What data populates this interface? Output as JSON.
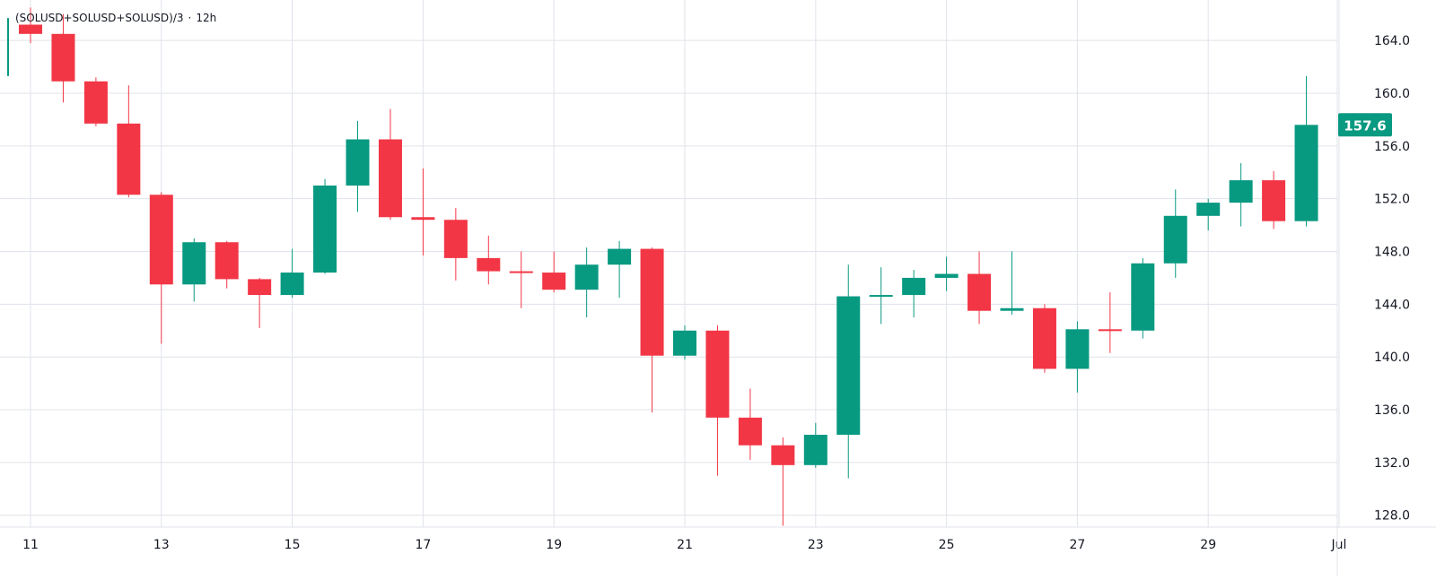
{
  "legend": {
    "symbol": "(SOLUSD+SOLUSD+SOLUSD)/3",
    "separator": "·",
    "interval": "12h"
  },
  "colors": {
    "up": "#089981",
    "down": "#F23645",
    "grid": "#E0E3EB",
    "axis_text": "#131722",
    "price_tag_bg": "#089981",
    "price_tag_text": "#FFFFFF"
  },
  "chart_data": {
    "type": "candlestick",
    "title": "(SOLUSD+SOLUSD+SOLUSD)/3 · 12h",
    "x_tick_labels": [
      "11",
      "13",
      "15",
      "17",
      "19",
      "21",
      "23",
      "25",
      "27",
      "29",
      "Jul"
    ],
    "y_tick_labels": [
      "128.0",
      "132.0",
      "136.0",
      "140.0",
      "144.0",
      "148.0",
      "152.0",
      "156.0",
      "160.0",
      "164.0"
    ],
    "ylim": [
      127.2,
      166.0
    ],
    "grid": true,
    "last_price": "157.6",
    "bar_times": [
      "Jun 11 00:00",
      "Jun 11 12:00",
      "Jun 12 00:00",
      "Jun 12 12:00",
      "Jun 13 00:00",
      "Jun 13 12:00",
      "Jun 14 00:00",
      "Jun 14 12:00",
      "Jun 15 00:00",
      "Jun 15 12:00",
      "Jun 16 00:00",
      "Jun 16 12:00",
      "Jun 17 00:00",
      "Jun 17 12:00",
      "Jun 18 00:00",
      "Jun 18 12:00",
      "Jun 19 00:00",
      "Jun 19 12:00",
      "Jun 20 00:00",
      "Jun 20 12:00",
      "Jun 21 00:00",
      "Jun 21 12:00",
      "Jun 22 00:00",
      "Jun 22 12:00",
      "Jun 23 00:00",
      "Jun 23 12:00",
      "Jun 24 00:00",
      "Jun 24 12:00",
      "Jun 25 00:00",
      "Jun 25 12:00",
      "Jun 26 00:00",
      "Jun 26 12:00",
      "Jun 27 00:00",
      "Jun 27 12:00",
      "Jun 28 00:00",
      "Jun 28 12:00",
      "Jun 29 00:00",
      "Jun 29 12:00",
      "Jun 30 00:00",
      "Jun 30 12:00"
    ],
    "ohlc": [
      [
        165.2,
        166.5,
        163.8,
        164.5
      ],
      [
        164.5,
        166.0,
        159.3,
        160.9
      ],
      [
        160.9,
        161.2,
        157.5,
        157.7
      ],
      [
        157.7,
        160.6,
        152.1,
        152.3
      ],
      [
        152.3,
        152.5,
        141.0,
        145.5
      ],
      [
        145.5,
        149.0,
        144.2,
        148.7
      ],
      [
        148.7,
        148.8,
        145.2,
        145.9
      ],
      [
        145.9,
        146.0,
        142.2,
        144.7
      ],
      [
        144.7,
        148.2,
        144.5,
        146.4
      ],
      [
        146.4,
        153.5,
        146.3,
        153.0
      ],
      [
        153.0,
        157.9,
        151.0,
        156.5
      ],
      [
        156.5,
        158.8,
        150.4,
        150.6
      ],
      [
        150.6,
        154.3,
        147.7,
        150.4
      ],
      [
        150.4,
        151.3,
        145.8,
        147.5
      ],
      [
        147.5,
        149.2,
        145.5,
        146.5
      ],
      [
        146.5,
        148.0,
        143.7,
        146.4
      ],
      [
        146.4,
        148.0,
        144.9,
        145.1
      ],
      [
        145.1,
        148.3,
        143.0,
        147.0
      ],
      [
        147.0,
        148.8,
        144.5,
        148.2
      ],
      [
        148.2,
        148.3,
        135.8,
        140.1
      ],
      [
        140.1,
        142.4,
        139.8,
        142.0
      ],
      [
        142.0,
        142.4,
        131.0,
        135.4
      ],
      [
        135.4,
        137.6,
        132.2,
        133.3
      ],
      [
        133.3,
        133.9,
        127.2,
        131.8
      ],
      [
        131.8,
        135.0,
        131.6,
        134.1
      ],
      [
        134.1,
        147.0,
        130.8,
        144.6
      ],
      [
        144.6,
        146.8,
        142.5,
        144.7
      ],
      [
        144.7,
        146.6,
        143.0,
        146.0
      ],
      [
        146.0,
        147.6,
        145.0,
        146.3
      ],
      [
        146.3,
        148.0,
        142.5,
        143.5
      ],
      [
        143.5,
        148.0,
        143.2,
        143.7
      ],
      [
        143.7,
        144.0,
        138.8,
        139.1
      ],
      [
        139.1,
        142.7,
        137.3,
        142.1
      ],
      [
        142.1,
        144.9,
        140.3,
        142.0
      ],
      [
        142.0,
        147.5,
        141.4,
        147.1
      ],
      [
        147.1,
        152.7,
        146.0,
        150.7
      ],
      [
        150.7,
        152.0,
        149.6,
        151.7
      ],
      [
        151.7,
        154.7,
        149.9,
        153.4
      ],
      [
        153.4,
        154.1,
        149.7,
        150.3
      ],
      [
        150.3,
        161.3,
        149.9,
        157.6
      ]
    ]
  }
}
